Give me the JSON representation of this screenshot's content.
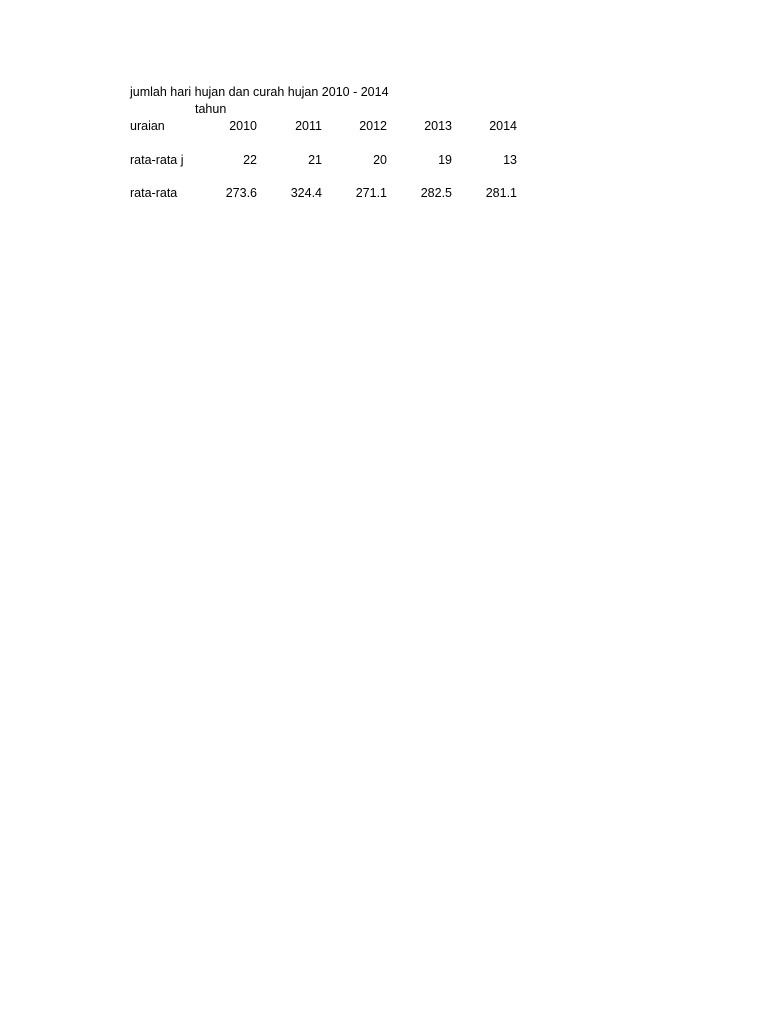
{
  "title": "jumlah hari hujan dan curah hujan 2010 - 2014",
  "group_header": "tahun",
  "table": {
    "header_label": "uraian",
    "years": [
      "2010",
      "2011",
      "2012",
      "2013",
      "2014"
    ],
    "rows": [
      {
        "label": "rata-rata j",
        "values": [
          "22",
          "21",
          "20",
          "19",
          "13"
        ]
      },
      {
        "label": "rata-rata",
        "values": [
          "273.6",
          "324.4",
          "271.1",
          "282.5",
          "281.1"
        ]
      }
    ]
  }
}
